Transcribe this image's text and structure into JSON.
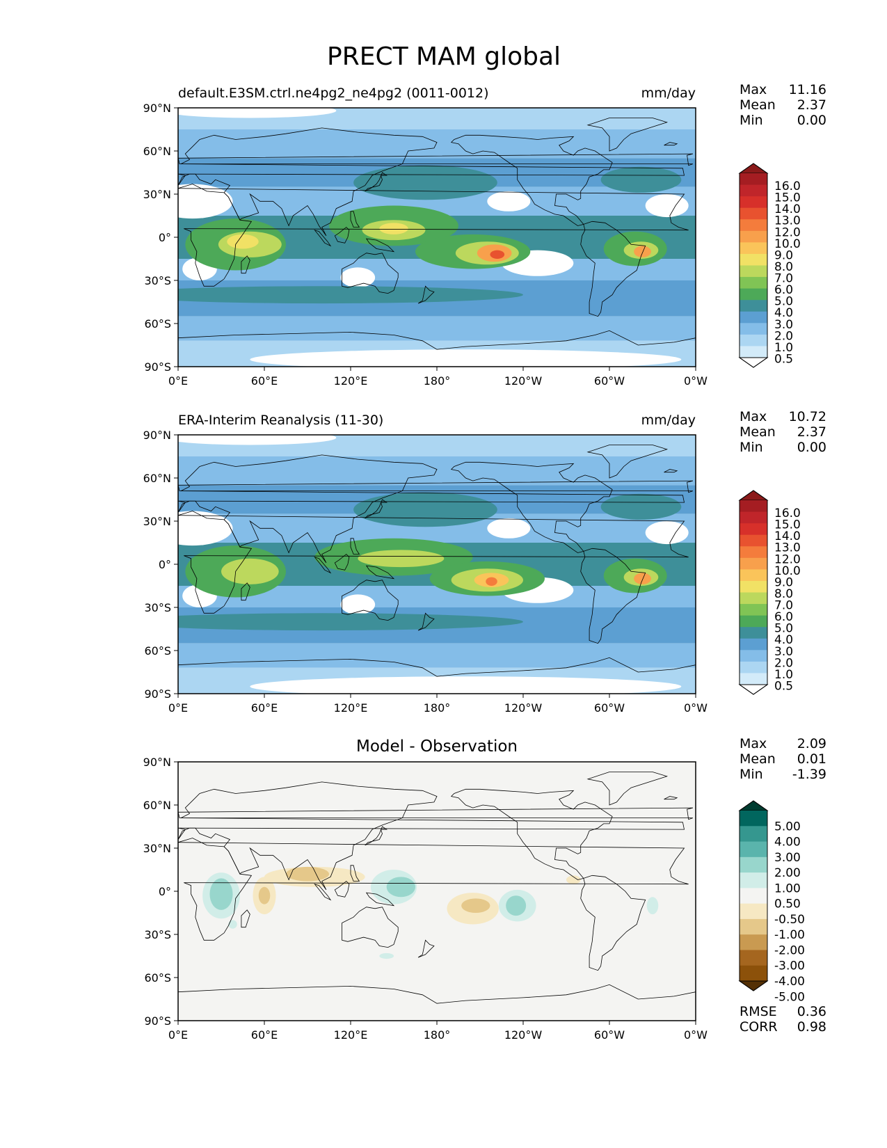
{
  "figure": {
    "title": "PRECT MAM global"
  },
  "chart_data": [
    {
      "type": "filled-contour map",
      "left_title": "default.E3SM.ctrl.ne4pg2_ne4pg2 (0011-0012)",
      "units": "mm/day",
      "stats": {
        "labels": [
          "Max",
          "Mean",
          "Min"
        ],
        "values": [
          "11.16",
          "2.37",
          "0.00"
        ]
      },
      "xticks": [
        "0°E",
        "60°E",
        "120°E",
        "180°",
        "120°W",
        "60°W",
        "0°W"
      ],
      "yticks": [
        "90°N",
        "60°N",
        "30°N",
        "0°",
        "30°S",
        "60°S",
        "90°S"
      ],
      "xlim": [
        0,
        360
      ],
      "ylim": [
        -90,
        90
      ],
      "colorbar": {
        "levels": [
          "16.0",
          "15.0",
          "14.0",
          "13.0",
          "12.0",
          "10.0",
          "9.0",
          "8.0",
          "7.0",
          "6.0",
          "5.0",
          "4.0",
          "3.0",
          "2.0",
          "1.0",
          "0.5"
        ],
        "colors": [
          "#8b1a1a",
          "#a51d22",
          "#c0252a",
          "#d7302a",
          "#e8522f",
          "#f47c3c",
          "#f8a04c",
          "#fac45a",
          "#f1e165",
          "#bcd85d",
          "#80c455",
          "#4da958",
          "#3e8f99",
          "#5c9fd2",
          "#84bde8",
          "#acd6f2",
          "#d3ebf9",
          "#ffffff"
        ]
      },
      "blobs": [
        {
          "lon": 40,
          "lat": -5,
          "rx": 35,
          "ry": 18,
          "v": 4.2
        },
        {
          "lon": 50,
          "lat": -5,
          "rx": 22,
          "ry": 9,
          "v": 6.3
        },
        {
          "lon": 45,
          "lat": -3,
          "rx": 11,
          "ry": 5,
          "v": 7.2
        },
        {
          "lon": 150,
          "lat": 8,
          "rx": 45,
          "ry": 14,
          "v": 4.3
        },
        {
          "lon": 150,
          "lat": 5,
          "rx": 22,
          "ry": 7,
          "v": 6.5
        },
        {
          "lon": 150,
          "lat": 6,
          "rx": 10,
          "ry": 4,
          "v": 7.5
        },
        {
          "lon": 205,
          "lat": -10,
          "rx": 40,
          "ry": 12,
          "v": 4.5
        },
        {
          "lon": 215,
          "lat": -11,
          "rx": 22,
          "ry": 8,
          "v": 6.6
        },
        {
          "lon": 220,
          "lat": -11,
          "rx": 12,
          "ry": 6,
          "v": 9.6
        },
        {
          "lon": 222,
          "lat": -12,
          "rx": 5,
          "ry": 3,
          "v": 12.5
        },
        {
          "lon": 318,
          "lat": -8,
          "rx": 22,
          "ry": 12,
          "v": 4.5
        },
        {
          "lon": 322,
          "lat": -9,
          "rx": 12,
          "ry": 6,
          "v": 6.5
        },
        {
          "lon": 323,
          "lat": -10,
          "rx": 6,
          "ry": 4,
          "v": 9.6
        },
        {
          "lon": 172,
          "lat": 38,
          "rx": 50,
          "ry": 12,
          "v": 3.4
        },
        {
          "lon": 322,
          "lat": 40,
          "rx": 28,
          "ry": 9,
          "v": 3.3
        },
        {
          "lon": 100,
          "lat": -40,
          "rx": 140,
          "ry": 6,
          "v": 3.3
        }
      ],
      "dry_patches": [
        {
          "lon": 10,
          "lat": 25,
          "rx": 28,
          "ry": 12
        },
        {
          "lon": 15,
          "lat": -22,
          "rx": 12,
          "ry": 8
        },
        {
          "lon": 250,
          "lat": -18,
          "rx": 25,
          "ry": 9
        },
        {
          "lon": 340,
          "lat": 22,
          "rx": 15,
          "ry": 8
        },
        {
          "lon": 125,
          "lat": -28,
          "rx": 12,
          "ry": 7
        },
        {
          "lon": 230,
          "lat": 25,
          "rx": 15,
          "ry": 7
        },
        {
          "lon": 50,
          "lat": 88,
          "rx": 60,
          "ry": 5
        },
        {
          "lon": 200,
          "lat": -85,
          "rx": 150,
          "ry": 7
        }
      ]
    },
    {
      "type": "filled-contour map",
      "left_title": "ERA-Interim Reanalysis (11-30)",
      "units": "mm/day",
      "stats": {
        "labels": [
          "Max",
          "Mean",
          "Min"
        ],
        "values": [
          "10.72",
          "2.37",
          "0.00"
        ]
      },
      "xticks": [
        "0°E",
        "60°E",
        "120°E",
        "180°",
        "120°W",
        "60°W",
        "0°W"
      ],
      "yticks": [
        "90°N",
        "60°N",
        "30°N",
        "0°",
        "30°S",
        "60°S",
        "90°S"
      ],
      "xlim": [
        0,
        360
      ],
      "ylim": [
        -90,
        90
      ],
      "colorbar": {
        "levels": [
          "16.0",
          "15.0",
          "14.0",
          "13.0",
          "12.0",
          "10.0",
          "9.0",
          "8.0",
          "7.0",
          "6.0",
          "5.0",
          "4.0",
          "3.0",
          "2.0",
          "1.0",
          "0.5"
        ],
        "colors": [
          "#8b1a1a",
          "#a51d22",
          "#c0252a",
          "#d7302a",
          "#e8522f",
          "#f47c3c",
          "#f8a04c",
          "#fac45a",
          "#f1e165",
          "#bcd85d",
          "#80c455",
          "#4da958",
          "#3e8f99",
          "#5c9fd2",
          "#84bde8",
          "#acd6f2",
          "#d3ebf9",
          "#ffffff"
        ]
      },
      "blobs": [
        {
          "lon": 40,
          "lat": -5,
          "rx": 35,
          "ry": 18,
          "v": 4.2
        },
        {
          "lon": 50,
          "lat": -5,
          "rx": 20,
          "ry": 9,
          "v": 6.3
        },
        {
          "lon": 150,
          "lat": 5,
          "rx": 55,
          "ry": 13,
          "v": 4.4
        },
        {
          "lon": 155,
          "lat": 4,
          "rx": 30,
          "ry": 6,
          "v": 6.4
        },
        {
          "lon": 215,
          "lat": -10,
          "rx": 40,
          "ry": 12,
          "v": 4.5
        },
        {
          "lon": 215,
          "lat": -11,
          "rx": 25,
          "ry": 8,
          "v": 6.6
        },
        {
          "lon": 218,
          "lat": -11,
          "rx": 12,
          "ry": 5,
          "v": 8.4
        },
        {
          "lon": 218,
          "lat": -12,
          "rx": 4,
          "ry": 3,
          "v": 11.5
        },
        {
          "lon": 318,
          "lat": -8,
          "rx": 22,
          "ry": 12,
          "v": 4.5
        },
        {
          "lon": 322,
          "lat": -9,
          "rx": 12,
          "ry": 6,
          "v": 6.5
        },
        {
          "lon": 323,
          "lat": -10,
          "rx": 6,
          "ry": 4,
          "v": 9.6
        },
        {
          "lon": 172,
          "lat": 38,
          "rx": 50,
          "ry": 12,
          "v": 3.4
        },
        {
          "lon": 322,
          "lat": 40,
          "rx": 28,
          "ry": 9,
          "v": 3.3
        },
        {
          "lon": 100,
          "lat": -40,
          "rx": 140,
          "ry": 6,
          "v": 3.3
        }
      ],
      "dry_patches": [
        {
          "lon": 10,
          "lat": 25,
          "rx": 28,
          "ry": 12
        },
        {
          "lon": 15,
          "lat": -22,
          "rx": 12,
          "ry": 8
        },
        {
          "lon": 250,
          "lat": -18,
          "rx": 25,
          "ry": 9
        },
        {
          "lon": 340,
          "lat": 22,
          "rx": 15,
          "ry": 8
        },
        {
          "lon": 125,
          "lat": -28,
          "rx": 12,
          "ry": 7
        },
        {
          "lon": 230,
          "lat": 25,
          "rx": 15,
          "ry": 7
        },
        {
          "lon": 50,
          "lat": 88,
          "rx": 60,
          "ry": 5
        },
        {
          "lon": 200,
          "lat": -85,
          "rx": 150,
          "ry": 7
        }
      ]
    },
    {
      "type": "filled-contour map",
      "center_title": "Model - Observation",
      "stats": {
        "labels": [
          "Max",
          "Mean",
          "Min"
        ],
        "values": [
          "2.09",
          "0.01",
          "-1.39"
        ]
      },
      "metrics": {
        "labels": [
          "RMSE",
          "CORR"
        ],
        "values": [
          "0.36",
          "0.98"
        ]
      },
      "xticks": [
        "0°E",
        "60°E",
        "120°E",
        "180°",
        "120°W",
        "60°W",
        "0°W"
      ],
      "yticks": [
        "90°N",
        "60°N",
        "30°N",
        "0°",
        "30°S",
        "60°S",
        "90°S"
      ],
      "xlim": [
        0,
        360
      ],
      "ylim": [
        -90,
        90
      ],
      "colorbar": {
        "levels": [
          "5.00",
          "4.00",
          "3.00",
          "2.00",
          "1.00",
          "0.50",
          "-0.50",
          "-1.00",
          "-2.00",
          "-3.00",
          "-4.00",
          "-5.00"
        ],
        "colors": [
          "#003c30",
          "#01665e",
          "#35978f",
          "#5ab4ac",
          "#98d6cc",
          "#d1ede8",
          "#f4f4f2",
          "#f6e8c3",
          "#e5c88a",
          "#c99a51",
          "#a5661f",
          "#8c510a",
          "#543005"
        ]
      },
      "blobs": [
        {
          "lon": 30,
          "lat": -3,
          "rx": 13,
          "ry": 16,
          "v": 0.7
        },
        {
          "lon": 30,
          "lat": -2,
          "rx": 8,
          "ry": 11,
          "v": 1.4
        },
        {
          "lon": 150,
          "lat": 3,
          "rx": 16,
          "ry": 12,
          "v": 0.7
        },
        {
          "lon": 155,
          "lat": 3,
          "rx": 10,
          "ry": 7,
          "v": 1.4
        },
        {
          "lon": 236,
          "lat": -10,
          "rx": 13,
          "ry": 11,
          "v": 0.7
        },
        {
          "lon": 235,
          "lat": -10,
          "rx": 7,
          "ry": 7,
          "v": 1.4
        },
        {
          "lon": 330,
          "lat": -10,
          "rx": 4,
          "ry": 6,
          "v": 0.7
        },
        {
          "lon": 95,
          "lat": 10,
          "rx": 35,
          "ry": 7,
          "v": -0.7
        },
        {
          "lon": 90,
          "lat": 12,
          "rx": 15,
          "ry": 5,
          "v": -1.4
        },
        {
          "lon": 60,
          "lat": -3,
          "rx": 8,
          "ry": 13,
          "v": -0.7
        },
        {
          "lon": 60,
          "lat": -3,
          "rx": 4,
          "ry": 6,
          "v": -1.4
        },
        {
          "lon": 205,
          "lat": -12,
          "rx": 18,
          "ry": 11,
          "v": -0.7
        },
        {
          "lon": 207,
          "lat": -10,
          "rx": 10,
          "ry": 5,
          "v": -1.4
        },
        {
          "lon": 275,
          "lat": 8,
          "rx": 5,
          "ry": 3,
          "v": -0.7
        },
        {
          "lon": 145,
          "lat": -45,
          "rx": 5,
          "ry": 2,
          "v": 0.7
        },
        {
          "lon": 38,
          "lat": -23,
          "rx": 3,
          "ry": 3,
          "v": 0.7
        }
      ]
    }
  ]
}
